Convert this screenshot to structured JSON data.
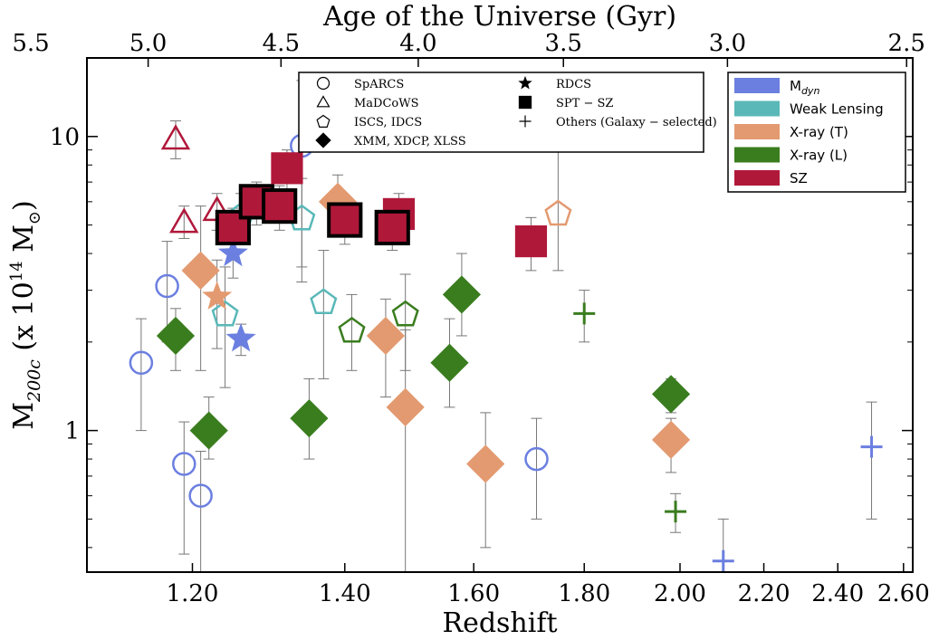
{
  "chart_data": {
    "type": "scatter",
    "title": "",
    "xlabel": "Redshift",
    "ylabel_main": "M",
    "ylabel_sub": "200c",
    "ylabel_rest": " (x 10",
    "ylabel_exp": "14",
    "ylabel_end": " M",
    "ylabel_sun": "⊙",
    "ylabel_close": ")",
    "top_xlabel": "Age of the Universe (Gyr)",
    "x_scale": "reciprocal (1+z)",
    "y_scale": "log",
    "xlim": [
      1.08,
      2.63
    ],
    "ylim": [
      0.33,
      18.5
    ],
    "x_ticks": [
      {
        "value": 1.2,
        "label": "1.20"
      },
      {
        "value": 1.4,
        "label": "1.40"
      },
      {
        "value": 1.6,
        "label": "1.60"
      },
      {
        "value": 1.8,
        "label": "1.80"
      },
      {
        "value": 2.0,
        "label": "2.00"
      },
      {
        "value": 2.2,
        "label": "2.20"
      },
      {
        "value": 2.4,
        "label": "2.40"
      },
      {
        "value": 2.6,
        "label": "2.60"
      }
    ],
    "top_ticks": [
      {
        "label": "5.5",
        "z": 1.01
      },
      {
        "label": "5.0",
        "z": 1.148
      },
      {
        "label": "4.5",
        "z": 1.312
      },
      {
        "label": "4.0",
        "z": 1.51
      },
      {
        "label": "3.5",
        "z": 1.76
      },
      {
        "label": "3.0",
        "z": 2.11
      },
      {
        "label": "2.5",
        "z": 2.61
      }
    ],
    "y_ticks": [
      {
        "value": 1,
        "label": "1"
      },
      {
        "value": 10,
        "label": "10"
      }
    ],
    "grid": false,
    "colors": {
      "dyn": "#6b7fe0",
      "wl": "#5ab8b8",
      "xt": "#e39a70",
      "xl": "#3a7d1f",
      "sz": "#b0183a"
    },
    "legend_selection": {
      "placement": "top-right",
      "entries": [
        {
          "key": "dyn",
          "label_main": "M",
          "label_sub": "dyn"
        },
        {
          "key": "wl",
          "label_main": "Weak Lensing"
        },
        {
          "key": "xt",
          "label_main": "X-ray (T)"
        },
        {
          "key": "xl",
          "label_main": "X-ray (L)"
        },
        {
          "key": "sz",
          "label_main": "SZ"
        }
      ]
    },
    "legend_survey": {
      "placement": "top-center",
      "entries": [
        {
          "marker": "circle",
          "label": "SpARCS"
        },
        {
          "marker": "triangle",
          "label": "MaDCoWS"
        },
        {
          "marker": "pentagon",
          "label": "ISCS, IDCS"
        },
        {
          "marker": "diamond",
          "label": "XMM, XDCP, XLSS"
        },
        {
          "marker": "star",
          "label": "RDCS"
        },
        {
          "marker": "square",
          "label": "SPT − SZ"
        },
        {
          "marker": "plus",
          "label": "Others (Galaxy − selected)"
        }
      ]
    },
    "points": [
      {
        "z": 1.14,
        "m": 1.7,
        "lo": 1.0,
        "hi": 2.4,
        "marker": "circle",
        "method": "dyn"
      },
      {
        "z": 1.17,
        "m": 3.1,
        "lo": 2.0,
        "hi": 4.4,
        "marker": "circle",
        "method": "dyn"
      },
      {
        "z": 1.19,
        "m": 0.77,
        "lo": 0.38,
        "hi": 1.07,
        "marker": "circle",
        "method": "dyn"
      },
      {
        "z": 1.21,
        "m": 0.6,
        "lo": 0.2,
        "hi": 0.85,
        "marker": "circle",
        "method": "dyn"
      },
      {
        "z": 1.34,
        "m": 9.3,
        "lo": 3.2,
        "hi": 15.5,
        "marker": "circle",
        "method": "dyn"
      },
      {
        "z": 1.71,
        "m": 0.8,
        "lo": 0.5,
        "hi": 1.1,
        "marker": "circle",
        "method": "dyn"
      },
      {
        "z": 1.18,
        "m": 9.8,
        "lo": 8.4,
        "hi": 11.3,
        "marker": "triangle",
        "method": "sz"
      },
      {
        "z": 1.19,
        "m": 5.1,
        "lo": 4.5,
        "hi": 5.8,
        "marker": "triangle",
        "method": "sz"
      },
      {
        "z": 1.23,
        "m": 5.6,
        "lo": 4.8,
        "hi": 6.4,
        "marker": "triangle",
        "method": "sz"
      },
      {
        "z": 1.24,
        "m": 2.5,
        "lo": 1.4,
        "hi": 3.6,
        "marker": "pentagon",
        "method": "wl"
      },
      {
        "z": 1.26,
        "m": 5.4,
        "lo": 4.4,
        "hi": 6.4,
        "marker": "pentagon",
        "method": "wl"
      },
      {
        "z": 1.34,
        "m": 5.3,
        "lo": 3.6,
        "hi": 7.2,
        "marker": "pentagon",
        "method": "wl"
      },
      {
        "z": 1.37,
        "m": 2.75,
        "lo": 1.5,
        "hi": 4.1,
        "marker": "pentagon",
        "method": "wl"
      },
      {
        "z": 1.41,
        "m": 2.2,
        "lo": 1.6,
        "hi": 2.9,
        "marker": "pentagon",
        "method": "xl"
      },
      {
        "z": 1.49,
        "m": 2.5,
        "lo": 1.6,
        "hi": 3.4,
        "marker": "pentagon",
        "method": "xl"
      },
      {
        "z": 1.75,
        "m": 5.5,
        "lo": 3.5,
        "hi": 10.5,
        "marker": "pentagon",
        "method": "xt"
      },
      {
        "z": 1.18,
        "m": 2.1,
        "lo": 1.6,
        "hi": 2.6,
        "marker": "diamond",
        "method": "xl"
      },
      {
        "z": 1.22,
        "m": 1.0,
        "lo": 0.8,
        "hi": 1.3,
        "marker": "diamond",
        "method": "xl"
      },
      {
        "z": 1.35,
        "m": 1.1,
        "lo": 0.8,
        "hi": 1.5,
        "marker": "diamond",
        "method": "xl"
      },
      {
        "z": 1.56,
        "m": 1.7,
        "lo": 1.2,
        "hi": 2.4,
        "marker": "diamond",
        "method": "xl"
      },
      {
        "z": 1.58,
        "m": 2.9,
        "lo": 2.1,
        "hi": 4.0,
        "marker": "diamond",
        "method": "xl"
      },
      {
        "z": 1.98,
        "m": 1.33,
        "lo": 1.15,
        "hi": 1.5,
        "marker": "diamond",
        "method": "xl"
      },
      {
        "z": 1.21,
        "m": 3.5,
        "lo": 1.6,
        "hi": 5.8,
        "marker": "diamond",
        "method": "xt"
      },
      {
        "z": 1.39,
        "m": 6.0,
        "lo": 4.6,
        "hi": 7.4,
        "marker": "diamond",
        "method": "xt"
      },
      {
        "z": 1.46,
        "m": 2.1,
        "lo": 1.3,
        "hi": 2.8,
        "marker": "diamond",
        "method": "xt"
      },
      {
        "z": 1.49,
        "m": 1.2,
        "lo": 0.2,
        "hi": 2.2,
        "marker": "diamond",
        "method": "xt"
      },
      {
        "z": 1.62,
        "m": 0.77,
        "lo": 0.4,
        "hi": 1.15,
        "marker": "diamond",
        "method": "xt"
      },
      {
        "z": 1.98,
        "m": 0.93,
        "lo": 0.72,
        "hi": 1.1,
        "marker": "diamond",
        "method": "xt"
      },
      {
        "z": 1.23,
        "m": 2.85,
        "lo": 1.9,
        "hi": 3.8,
        "marker": "star",
        "method": "xt"
      },
      {
        "z": 1.25,
        "m": 4.0,
        "lo": 3.3,
        "hi": 4.7,
        "marker": "star",
        "method": "dyn"
      },
      {
        "z": 1.26,
        "m": 2.05,
        "lo": 1.8,
        "hi": 2.3,
        "marker": "star",
        "method": "dyn"
      },
      {
        "z": 1.25,
        "m": 4.9,
        "lo": 4.1,
        "hi": 5.7,
        "marker": "square",
        "method": "sz",
        "border": true
      },
      {
        "z": 1.28,
        "m": 6.0,
        "lo": 5.0,
        "hi": 7.0,
        "marker": "square",
        "method": "sz",
        "border": true
      },
      {
        "z": 1.31,
        "m": 5.8,
        "lo": 4.8,
        "hi": 6.8,
        "marker": "square",
        "method": "sz",
        "border": true
      },
      {
        "z": 1.32,
        "m": 7.8,
        "lo": 6.5,
        "hi": 9.0,
        "marker": "square",
        "method": "sz",
        "border": false
      },
      {
        "z": 1.4,
        "m": 5.2,
        "lo": 4.3,
        "hi": 6.1,
        "marker": "square",
        "method": "sz",
        "border": true
      },
      {
        "z": 1.48,
        "m": 5.45,
        "lo": 4.5,
        "hi": 6.4,
        "marker": "square",
        "method": "sz",
        "border": false
      },
      {
        "z": 1.47,
        "m": 4.9,
        "lo": 4.1,
        "hi": 5.7,
        "marker": "square",
        "method": "sz",
        "border": true
      },
      {
        "z": 1.7,
        "m": 4.4,
        "lo": 3.5,
        "hi": 5.3,
        "marker": "square",
        "method": "sz",
        "border": false
      },
      {
        "z": 1.8,
        "m": 2.5,
        "lo": 2.0,
        "hi": 3.0,
        "marker": "plus",
        "method": "xl"
      },
      {
        "z": 1.99,
        "m": 0.53,
        "lo": 0.45,
        "hi": 0.61,
        "marker": "plus",
        "method": "xl"
      },
      {
        "z": 2.1,
        "m": 0.36,
        "lo": 0.27,
        "hi": 0.5,
        "marker": "plus",
        "method": "dyn"
      },
      {
        "z": 2.5,
        "m": 0.88,
        "lo": 0.5,
        "hi": 1.25,
        "marker": "plus",
        "method": "dyn"
      }
    ]
  }
}
